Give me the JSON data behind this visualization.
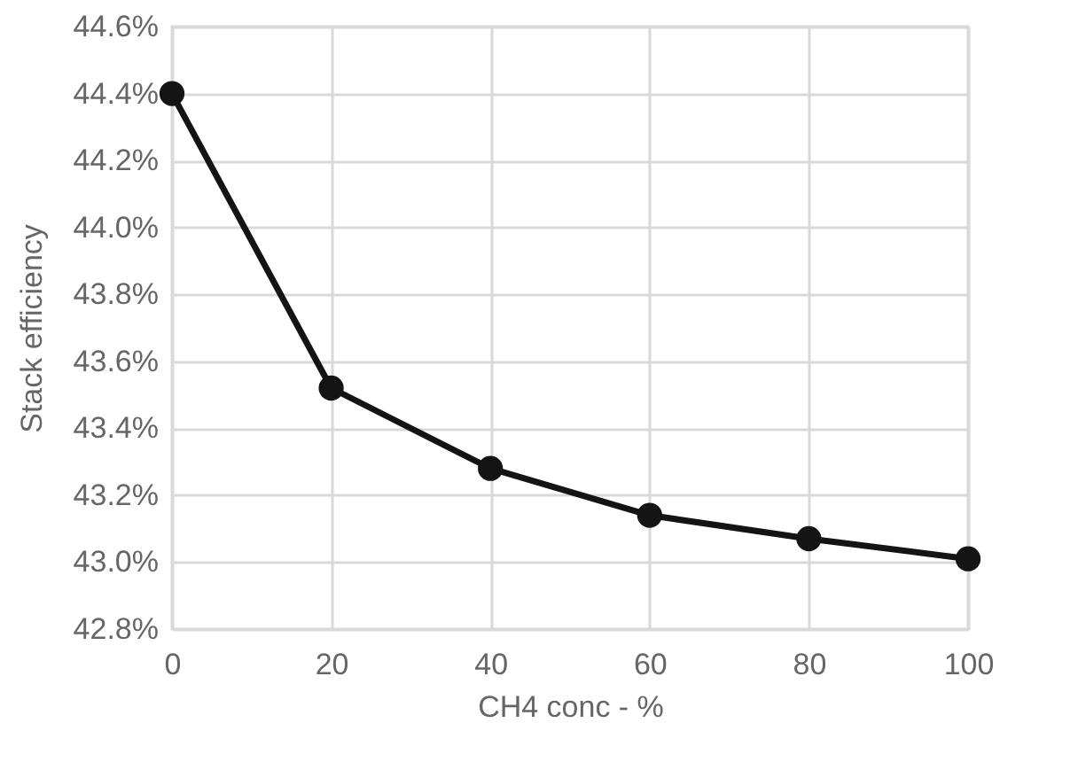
{
  "chart_data": {
    "type": "line",
    "xlabel": "CH4 conc - %",
    "ylabel": "Stack efficiency",
    "x": [
      0,
      20,
      40,
      60,
      80,
      100
    ],
    "series": [
      {
        "color": "#141414",
        "values": [
          44.4,
          43.52,
          43.28,
          43.14,
          43.07,
          43.01
        ]
      }
    ],
    "xlim": [
      0,
      100
    ],
    "xticks": [
      0,
      20,
      40,
      60,
      80,
      100
    ],
    "ylim": [
      42.8,
      44.6
    ],
    "yticks": [
      {
        "value": 42.8,
        "label": "42.8%"
      },
      {
        "value": 43.0,
        "label": "43.0%"
      },
      {
        "value": 43.2,
        "label": "43.2%"
      },
      {
        "value": 43.4,
        "label": "43.4%"
      },
      {
        "value": 43.6,
        "label": "43.6%"
      },
      {
        "value": 43.8,
        "label": "43.8%"
      },
      {
        "value": 44.0,
        "label": "44.0%"
      },
      {
        "value": 44.2,
        "label": "44.2%"
      },
      {
        "value": 44.4,
        "label": "44.4%"
      },
      {
        "value": 44.6,
        "label": "44.6%"
      }
    ],
    "grid": true,
    "marker": "circle"
  }
}
